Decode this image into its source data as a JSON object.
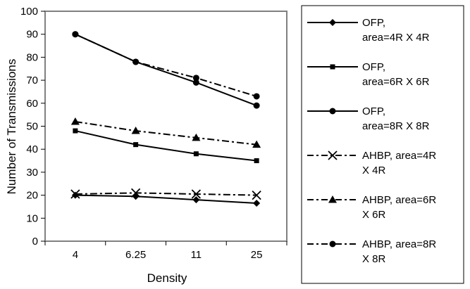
{
  "chart_data": {
    "type": "line",
    "title": "",
    "xlabel": "Density",
    "ylabel": "Number of Transmissions",
    "categories": [
      "4",
      "6.25",
      "11",
      "25"
    ],
    "ylim": [
      0,
      100
    ],
    "yticks": [
      "0",
      "10",
      "20",
      "30",
      "40",
      "50",
      "60",
      "70",
      "80",
      "90",
      "100"
    ],
    "grid": false,
    "legend_position": "right",
    "series": [
      {
        "name": "OFP, area=4R X 4R",
        "legend_lines": [
          "OFP,",
          "area=4R X 4R"
        ],
        "values": [
          20,
          19.5,
          18,
          16.5
        ],
        "marker": "diamond",
        "dash": "solid"
      },
      {
        "name": "OFP, area=6R X 6R",
        "legend_lines": [
          "OFP,",
          "area=6R X 6R"
        ],
        "values": [
          48,
          42,
          38,
          35
        ],
        "marker": "square",
        "dash": "solid"
      },
      {
        "name": "OFP, area=8R X 8R",
        "legend_lines": [
          "OFP,",
          "area=8R X 8R"
        ],
        "values": [
          90,
          78,
          69,
          59
        ],
        "marker": "circle",
        "dash": "solid"
      },
      {
        "name": "AHBP, area=4R X 4R",
        "legend_lines": [
          "AHBP, area=4R",
          "X 4R"
        ],
        "values": [
          20.5,
          21,
          20.5,
          20
        ],
        "marker": "x",
        "dash": "dashdot"
      },
      {
        "name": "AHBP, area=6R X 6R",
        "legend_lines": [
          "AHBP, area=6R",
          "X 6R"
        ],
        "values": [
          52,
          48,
          45,
          42
        ],
        "marker": "triangle",
        "dash": "dashdot"
      },
      {
        "name": "AHBP, area=8R X 8R",
        "legend_lines": [
          "AHBP, area=8R",
          "X 8R"
        ],
        "values": [
          90,
          78,
          71,
          63
        ],
        "marker": "circle",
        "dash": "dashdot"
      }
    ]
  }
}
